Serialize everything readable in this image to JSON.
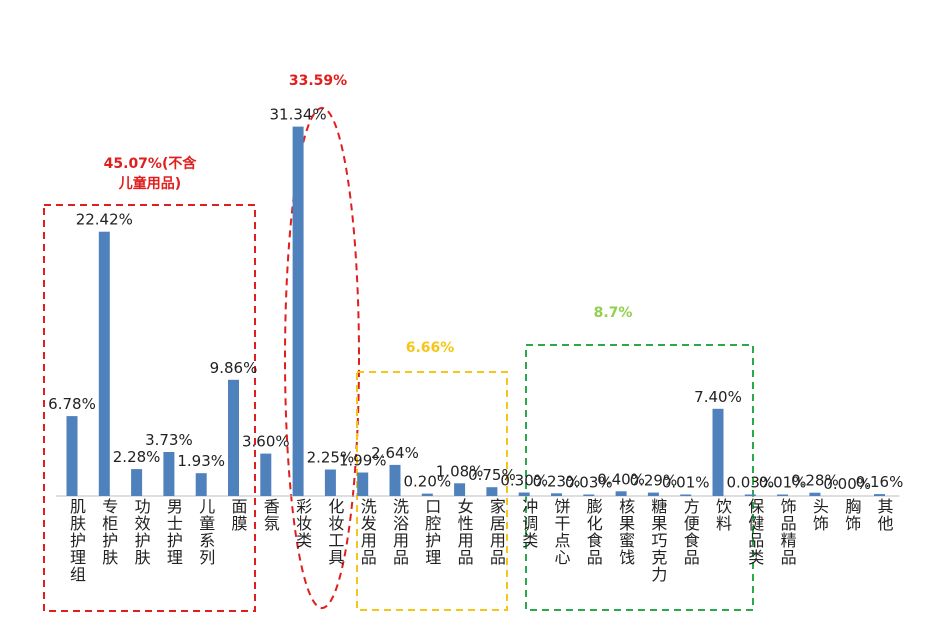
{
  "chart_data": {
    "type": "bar",
    "categories": [
      "肌肤护理组",
      "专柜护肤",
      "功效护肤",
      "男士护理",
      "儿童系列",
      "面膜",
      "香氛",
      "彩妆类",
      "化妆工具",
      "洗发用品",
      "洗浴用品",
      "口腔护理",
      "女性用品",
      "家居用品",
      "冲调类",
      "饼干点心",
      "膨化食品",
      "核果蜜饯",
      "糖果巧克力",
      "方便食品",
      "饮料",
      "保健品类",
      "饰品精品",
      "头饰",
      "胸饰",
      "其他"
    ],
    "values": [
      6.78,
      22.42,
      2.28,
      3.73,
      1.93,
      9.86,
      3.6,
      31.34,
      2.25,
      1.99,
      2.64,
      0.2,
      1.08,
      0.75,
      0.3,
      0.23,
      0.03,
      0.4,
      0.29,
      0.01,
      7.4,
      0.03,
      0.01,
      0.28,
      0.0,
      0.16
    ],
    "value_labels": [
      "6.78%",
      "22.42%",
      "2.28%",
      "3.73%",
      "1.93%",
      "9.86%",
      "3.60%",
      "31.34%",
      "2.25%",
      "1.99%",
      "2.64%",
      "0.20%",
      "1.08%",
      "0.75%",
      "0.30%",
      "0.23%",
      "0.03%",
      "0.40%",
      "0.29%",
      "0.01%",
      "7.40%",
      "0.03%",
      "0.01%",
      "0.28%",
      "0.00%",
      "0.16%"
    ],
    "ylim": [
      0,
      33
    ],
    "grid": false,
    "color": "#4f81bd",
    "annotations": [
      {
        "lines": [
          "45.07%(不含",
          "儿童用品)"
        ],
        "color": "#e01e1e",
        "border": "dashed-rect",
        "from": 0,
        "to": 5
      },
      {
        "lines": [
          "33.59%"
        ],
        "color": "#e01e1e",
        "border": "dashed-ellipse",
        "from": 7,
        "to": 8
      },
      {
        "lines": [
          "6.66%"
        ],
        "color": "#f5c518",
        "border": "dashed-rect",
        "from": 9,
        "to": 13
      },
      {
        "lines": [
          "8.7%"
        ],
        "color": "#92d050",
        "border": "dashed-rect",
        "from": 15,
        "to": 21
      }
    ],
    "box_colors": [
      "#e01e1e",
      "#e01e1e",
      "#f5c518",
      "#2aa84a"
    ]
  }
}
